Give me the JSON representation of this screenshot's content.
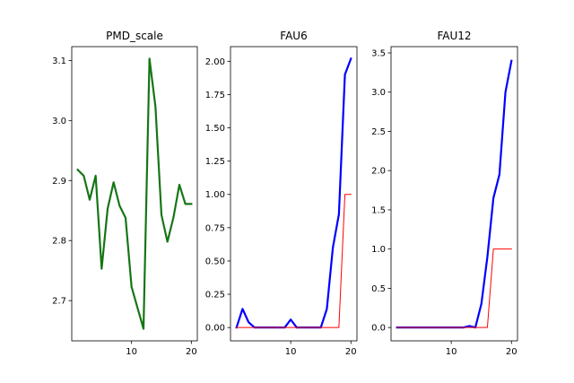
{
  "chart_data": [
    {
      "type": "line",
      "title": "PMD_scale",
      "xlabel": "",
      "ylabel": "",
      "x": [
        1,
        2,
        3,
        4,
        5,
        6,
        7,
        8,
        9,
        10,
        11,
        12,
        13,
        14,
        15,
        16,
        17,
        18,
        19,
        20
      ],
      "xlim": [
        0,
        21
      ],
      "ylim": [
        2.633,
        3.123
      ],
      "xticks": [
        10,
        20
      ],
      "yticks": [
        2.7,
        2.8,
        2.9,
        3.0,
        3.1
      ],
      "ytick_labels": [
        "2.7",
        "2.8",
        "2.9",
        "3.0",
        "3.1"
      ],
      "grid": false,
      "series": [
        {
          "color": "#2a6e2a",
          "width": 2.2,
          "values": [
            2.918,
            2.908,
            2.868,
            2.908,
            2.753,
            2.853,
            2.897,
            2.858,
            2.838,
            2.723,
            2.688,
            2.653,
            3.103,
            3.023,
            2.843,
            2.798,
            2.838,
            2.893,
            2.861,
            2.861
          ]
        },
        {
          "color": "#008000",
          "width": 1.0,
          "values": [
            2.918,
            2.908,
            2.868,
            2.908,
            2.753,
            2.853,
            2.897,
            2.858,
            2.838,
            2.723,
            2.688,
            2.653,
            3.103,
            3.023,
            2.843,
            2.798,
            2.838,
            2.893,
            2.861,
            2.861
          ]
        }
      ]
    },
    {
      "type": "line",
      "title": "FAU6",
      "xlabel": "",
      "ylabel": "",
      "x": [
        1,
        2,
        3,
        4,
        5,
        6,
        7,
        8,
        9,
        10,
        11,
        12,
        13,
        14,
        15,
        16,
        17,
        18,
        19,
        20
      ],
      "xlim": [
        0,
        21
      ],
      "ylim": [
        -0.1,
        2.11
      ],
      "xticks": [
        10,
        20
      ],
      "yticks": [
        0,
        0.25,
        0.5,
        0.75,
        1.0,
        1.25,
        1.5,
        1.75,
        2.0
      ],
      "ytick_labels": [
        "0.00",
        "0.25",
        "0.50",
        "0.75",
        "1.00",
        "1.25",
        "1.50",
        "1.75",
        "2.00"
      ],
      "grid": false,
      "series": [
        {
          "color": "#0000ff",
          "width": 2.2,
          "values": [
            0.0,
            0.14,
            0.04,
            0.0,
            0.0,
            0.0,
            0.0,
            0.0,
            0.0,
            0.06,
            0.0,
            0.0,
            0.0,
            0.0,
            0.0,
            0.14,
            0.6,
            0.85,
            1.9,
            2.02
          ]
        },
        {
          "color": "#ff0000",
          "width": 1.0,
          "values": [
            0,
            0,
            0,
            0,
            0,
            0,
            0,
            0,
            0,
            0,
            0,
            0,
            0,
            0,
            0,
            0,
            0,
            0,
            1.0,
            1.0
          ]
        }
      ]
    },
    {
      "type": "line",
      "title": "FAU12",
      "xlabel": "",
      "ylabel": "",
      "x": [
        1,
        2,
        3,
        4,
        5,
        6,
        7,
        8,
        9,
        10,
        11,
        12,
        13,
        14,
        15,
        16,
        17,
        18,
        19,
        20
      ],
      "xlim": [
        0,
        21
      ],
      "ylim": [
        -0.17,
        3.58
      ],
      "xticks": [
        10,
        20
      ],
      "yticks": [
        0,
        0.5,
        1.0,
        1.5,
        2.0,
        2.5,
        3.0,
        3.5
      ],
      "ytick_labels": [
        "0.0",
        "0.5",
        "1.0",
        "1.5",
        "2.0",
        "2.5",
        "3.0",
        "3.5"
      ],
      "grid": false,
      "series": [
        {
          "color": "#0000ff",
          "width": 2.2,
          "values": [
            0,
            0,
            0,
            0,
            0,
            0,
            0,
            0,
            0,
            0,
            0,
            0,
            0.02,
            0.0,
            0.3,
            0.9,
            1.65,
            1.95,
            3.0,
            3.4
          ]
        },
        {
          "color": "#ff0000",
          "width": 1.0,
          "values": [
            0,
            0,
            0,
            0,
            0,
            0,
            0,
            0,
            0,
            0,
            0,
            0,
            0,
            0,
            0,
            0,
            1.0,
            1.0,
            1.0,
            1.0
          ]
        }
      ]
    }
  ]
}
